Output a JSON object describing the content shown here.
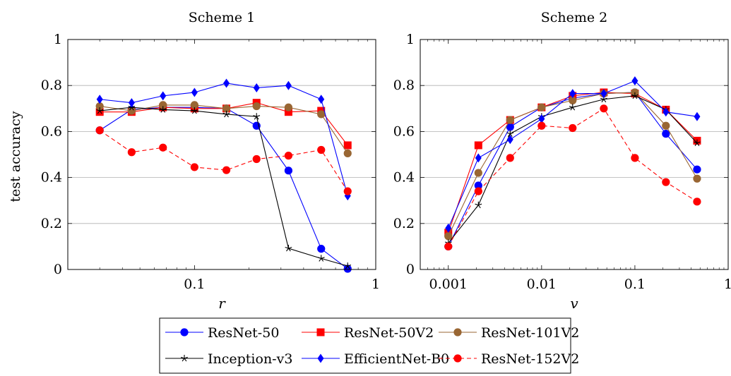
{
  "y_axis_label": "test accuracy",
  "chart_data": [
    {
      "type": "line",
      "title": "Scheme 1",
      "xlabel": "r",
      "ylabel": "test accuracy",
      "xscale": "log",
      "xlim": [
        0.02,
        1
      ],
      "ylim": [
        0,
        1
      ],
      "xticks": [
        {
          "value": 0.1,
          "label": "0.1"
        },
        {
          "value": 1,
          "label": "1"
        }
      ],
      "yticks": [
        {
          "value": 0,
          "label": "0"
        },
        {
          "value": 0.2,
          "label": "0.2"
        },
        {
          "value": 0.4,
          "label": "0.4"
        },
        {
          "value": 0.6,
          "label": "0.6"
        },
        {
          "value": 0.8,
          "label": "0.8"
        },
        {
          "value": 1,
          "label": "1"
        }
      ],
      "grid": "horizontal",
      "x": [
        0.03,
        0.045,
        0.067,
        0.1,
        0.15,
        0.22,
        0.33,
        0.5,
        0.7
      ],
      "series": [
        {
          "name": "ResNet-50",
          "values": [
            0.605,
            0.695,
            0.705,
            0.705,
            0.7,
            0.625,
            0.43,
            0.09,
            0.003
          ]
        },
        {
          "name": "ResNet-50V2",
          "values": [
            0.685,
            0.685,
            0.705,
            0.7,
            0.7,
            0.725,
            0.685,
            0.69,
            0.54
          ]
        },
        {
          "name": "ResNet-101V2",
          "values": [
            0.71,
            0.69,
            0.715,
            0.715,
            0.7,
            0.71,
            0.705,
            0.675,
            0.505
          ]
        },
        {
          "name": "Inception-v3",
          "values": [
            0.69,
            0.705,
            0.695,
            0.69,
            0.675,
            0.665,
            0.092,
            0.048,
            0.015
          ]
        },
        {
          "name": "EfficientNet-B0",
          "values": [
            0.74,
            0.725,
            0.755,
            0.77,
            0.81,
            0.79,
            0.8,
            0.74,
            0.32
          ]
        },
        {
          "name": "ResNet-152V2",
          "values": [
            0.605,
            0.51,
            0.53,
            0.445,
            0.432,
            0.48,
            0.495,
            0.52,
            0.34
          ]
        }
      ]
    },
    {
      "type": "line",
      "title": "Scheme 2",
      "xlabel": "v",
      "ylabel": "",
      "xscale": "log",
      "xlim": [
        0.0005,
        1
      ],
      "ylim": [
        0,
        1
      ],
      "xticks": [
        {
          "value": 0.001,
          "label": "0.001"
        },
        {
          "value": 0.01,
          "label": "0.01"
        },
        {
          "value": 0.1,
          "label": "0.1"
        },
        {
          "value": 1,
          "label": "1"
        }
      ],
      "yticks": [
        {
          "value": 0,
          "label": "0"
        },
        {
          "value": 0.2,
          "label": "0.2"
        },
        {
          "value": 0.4,
          "label": "0.4"
        },
        {
          "value": 0.6,
          "label": "0.6"
        },
        {
          "value": 0.8,
          "label": "0.8"
        },
        {
          "value": 1,
          "label": "1"
        }
      ],
      "grid": "horizontal",
      "x": [
        0.001,
        0.0021,
        0.0046,
        0.01,
        0.0215,
        0.0464,
        0.1,
        0.215,
        0.464
      ],
      "series": [
        {
          "name": "ResNet-50",
          "values": [
            0.1,
            0.365,
            0.62,
            0.705,
            0.745,
            0.765,
            0.77,
            0.59,
            0.435
          ]
        },
        {
          "name": "ResNet-50V2",
          "values": [
            0.16,
            0.54,
            0.65,
            0.705,
            0.755,
            0.77,
            0.765,
            0.695,
            0.56
          ]
        },
        {
          "name": "ResNet-101V2",
          "values": [
            0.145,
            0.42,
            0.65,
            0.705,
            0.735,
            0.765,
            0.77,
            0.625,
            0.395
          ]
        },
        {
          "name": "Inception-v3",
          "values": [
            0.115,
            0.28,
            0.59,
            0.665,
            0.705,
            0.74,
            0.755,
            0.695,
            0.55
          ]
        },
        {
          "name": "EfficientNet-B0",
          "values": [
            0.18,
            0.485,
            0.565,
            0.655,
            0.765,
            0.765,
            0.82,
            0.685,
            0.665
          ]
        },
        {
          "name": "ResNet-152V2",
          "values": [
            0.1,
            0.34,
            0.485,
            0.625,
            0.615,
            0.7,
            0.485,
            0.38,
            0.295
          ]
        }
      ]
    }
  ],
  "legend": {
    "placement": "bottom-center",
    "columns": 3,
    "entries": [
      {
        "name": "ResNet-50",
        "color": "#0000ff",
        "marker": "circle",
        "dash": "solid"
      },
      {
        "name": "ResNet-50V2",
        "color": "#ff0000",
        "marker": "square",
        "dash": "solid"
      },
      {
        "name": "ResNet-101V2",
        "color": "#996633",
        "marker": "circle",
        "dash": "solid"
      },
      {
        "name": "Inception-v3",
        "color": "#000000",
        "marker": "star",
        "dash": "solid"
      },
      {
        "name": "EfficientNet-B0",
        "color": "#0000ff",
        "marker": "diamond",
        "dash": "solid"
      },
      {
        "name": "ResNet-152V2",
        "color": "#ff0000",
        "marker": "circle",
        "dash": "dashed"
      }
    ]
  }
}
